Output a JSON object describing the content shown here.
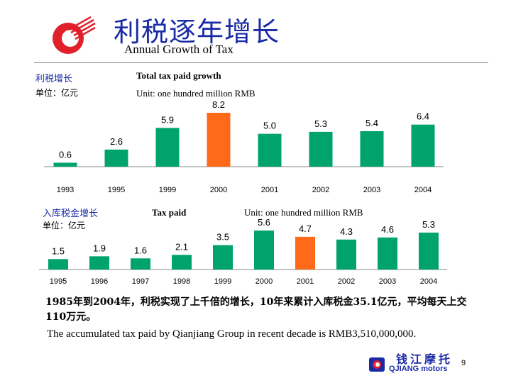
{
  "header": {
    "title_cn": "利税逐年增长",
    "title_en": "Annual Growth of Tax"
  },
  "chart1_labels": {
    "label_cn": "利税增长",
    "unit_cn": "单位：亿元",
    "title_en": "Total tax paid growth",
    "unit_en": "Unit: one hundred million RMB"
  },
  "chart2_labels": {
    "label_cn": "入库税金增长",
    "unit_cn": "单位：亿元",
    "title_en": "Tax paid",
    "unit_en": "Unit: one hundred million RMB"
  },
  "description": {
    "cn": "1985年到2004年，利税实现了上千倍的增长，10年来累计入库税金35.1亿元，平均每天上交110万元。",
    "en": "The accumulated tax paid by Qianjiang Group in recent decade is RMB3,510,000,000."
  },
  "footer": {
    "brand_cn": "钱江摩托",
    "brand_en": "QJIANG motors",
    "page_number": "9"
  },
  "colors": {
    "bar": "#00a36c",
    "highlight": "#ff6a1a",
    "title": "#1a2aa6",
    "logo_red": "#e0202a"
  },
  "chart_data": [
    {
      "type": "bar",
      "title": "Total tax paid growth",
      "categories": [
        "1993",
        "1995",
        "1999",
        "2000",
        "2001",
        "2002",
        "2003",
        "2004"
      ],
      "values": [
        0.6,
        2.6,
        5.9,
        8.2,
        5.0,
        5.3,
        5.4,
        6.4
      ],
      "highlight_index": 3,
      "ylim": [
        0,
        8.2
      ]
    },
    {
      "type": "bar",
      "title": "Tax paid",
      "categories": [
        "1995",
        "1996",
        "1997",
        "1998",
        "1999",
        "2000",
        "2001",
        "2002",
        "2003",
        "2004"
      ],
      "values": [
        1.5,
        1.9,
        1.6,
        2.1,
        3.5,
        5.6,
        4.7,
        4.3,
        4.6,
        5.3
      ],
      "highlight_index": 6,
      "ylim": [
        0,
        5.6
      ]
    }
  ]
}
